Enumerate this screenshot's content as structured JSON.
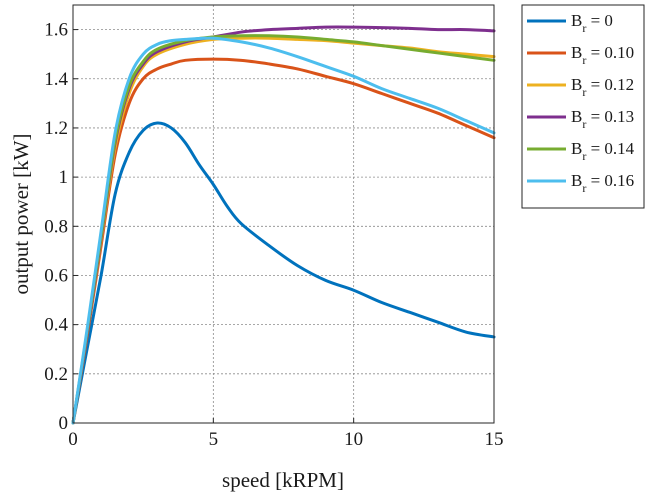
{
  "chart_data": {
    "type": "line",
    "xlabel": "speed [kRPM]",
    "ylabel": "output power [kW]",
    "xlim": [
      0,
      15
    ],
    "ylim": [
      0,
      1.7
    ],
    "xticks": [
      0,
      5,
      10,
      15
    ],
    "yticks": [
      0,
      0.2,
      0.4,
      0.6,
      0.8,
      1,
      1.2,
      1.4,
      1.6
    ],
    "grid": true,
    "legend_position": "outside-right",
    "series": [
      {
        "name_main": "B",
        "name_sub": "r",
        "name_rest": " = 0",
        "color": "#0072BD",
        "points": [
          [
            0,
            0
          ],
          [
            0.5,
            0.3
          ],
          [
            1,
            0.6
          ],
          [
            1.5,
            0.93
          ],
          [
            2,
            1.1
          ],
          [
            2.5,
            1.19
          ],
          [
            3,
            1.22
          ],
          [
            3.5,
            1.2
          ],
          [
            4,
            1.14
          ],
          [
            4.5,
            1.05
          ],
          [
            5,
            0.97
          ],
          [
            5.5,
            0.88
          ],
          [
            6,
            0.81
          ],
          [
            7,
            0.72
          ],
          [
            8,
            0.64
          ],
          [
            9,
            0.58
          ],
          [
            10,
            0.54
          ],
          [
            11,
            0.49
          ],
          [
            12,
            0.45
          ],
          [
            13,
            0.41
          ],
          [
            14,
            0.37
          ],
          [
            15,
            0.35
          ]
        ]
      },
      {
        "name_main": "B",
        "name_sub": "r",
        "name_rest": " = 0.10",
        "color": "#D95319",
        "points": [
          [
            0,
            0
          ],
          [
            0.5,
            0.35
          ],
          [
            1,
            0.72
          ],
          [
            1.5,
            1.09
          ],
          [
            2,
            1.3
          ],
          [
            2.5,
            1.4
          ],
          [
            3,
            1.44
          ],
          [
            3.5,
            1.46
          ],
          [
            4,
            1.475
          ],
          [
            5,
            1.48
          ],
          [
            6,
            1.475
          ],
          [
            7,
            1.46
          ],
          [
            8,
            1.44
          ],
          [
            9,
            1.41
          ],
          [
            10,
            1.38
          ],
          [
            11,
            1.34
          ],
          [
            12,
            1.3
          ],
          [
            13,
            1.26
          ],
          [
            14,
            1.21
          ],
          [
            15,
            1.16
          ]
        ]
      },
      {
        "name_main": "B",
        "name_sub": "r",
        "name_rest": " = 0.12",
        "color": "#EDB120",
        "points": [
          [
            0,
            0
          ],
          [
            0.5,
            0.36
          ],
          [
            1,
            0.74
          ],
          [
            1.5,
            1.12
          ],
          [
            2,
            1.34
          ],
          [
            2.5,
            1.45
          ],
          [
            3,
            1.5
          ],
          [
            4,
            1.54
          ],
          [
            5,
            1.56
          ],
          [
            6,
            1.565
          ],
          [
            7,
            1.565
          ],
          [
            8,
            1.56
          ],
          [
            9,
            1.555
          ],
          [
            10,
            1.545
          ],
          [
            11,
            1.535
          ],
          [
            12,
            1.525
          ],
          [
            13,
            1.51
          ],
          [
            14,
            1.5
          ],
          [
            15,
            1.49
          ]
        ]
      },
      {
        "name_main": "B",
        "name_sub": "r",
        "name_rest": " = 0.13",
        "color": "#7E2F8E",
        "points": [
          [
            0,
            0
          ],
          [
            0.5,
            0.36
          ],
          [
            1,
            0.75
          ],
          [
            1.5,
            1.14
          ],
          [
            2,
            1.36
          ],
          [
            2.5,
            1.46
          ],
          [
            3,
            1.51
          ],
          [
            4,
            1.55
          ],
          [
            5,
            1.57
          ],
          [
            6,
            1.59
          ],
          [
            7,
            1.6
          ],
          [
            8,
            1.605
          ],
          [
            9,
            1.61
          ],
          [
            10,
            1.61
          ],
          [
            11,
            1.608
          ],
          [
            12,
            1.605
          ],
          [
            13,
            1.6
          ],
          [
            14,
            1.6
          ],
          [
            15,
            1.595
          ]
        ]
      },
      {
        "name_main": "B",
        "name_sub": "r",
        "name_rest": " = 0.14",
        "color": "#77AC30",
        "points": [
          [
            0,
            0
          ],
          [
            0.5,
            0.37
          ],
          [
            1,
            0.76
          ],
          [
            1.5,
            1.15
          ],
          [
            2,
            1.37
          ],
          [
            2.5,
            1.47
          ],
          [
            3,
            1.52
          ],
          [
            4,
            1.555
          ],
          [
            5,
            1.57
          ],
          [
            6,
            1.575
          ],
          [
            7,
            1.575
          ],
          [
            8,
            1.57
          ],
          [
            9,
            1.56
          ],
          [
            10,
            1.55
          ],
          [
            11,
            1.535
          ],
          [
            12,
            1.52
          ],
          [
            13,
            1.505
          ],
          [
            14,
            1.49
          ],
          [
            15,
            1.475
          ]
        ]
      },
      {
        "name_main": "B",
        "name_sub": "r",
        "name_rest": " = 0.16",
        "color": "#4DBEEE",
        "points": [
          [
            0,
            0
          ],
          [
            0.5,
            0.38
          ],
          [
            1,
            0.78
          ],
          [
            1.5,
            1.18
          ],
          [
            2,
            1.4
          ],
          [
            2.5,
            1.5
          ],
          [
            3,
            1.54
          ],
          [
            3.5,
            1.555
          ],
          [
            4,
            1.56
          ],
          [
            5,
            1.565
          ],
          [
            6,
            1.55
          ],
          [
            7,
            1.525
          ],
          [
            8,
            1.49
          ],
          [
            9,
            1.45
          ],
          [
            10,
            1.41
          ],
          [
            11,
            1.36
          ],
          [
            12,
            1.32
          ],
          [
            13,
            1.28
          ],
          [
            14,
            1.23
          ],
          [
            15,
            1.18
          ]
        ]
      }
    ]
  }
}
